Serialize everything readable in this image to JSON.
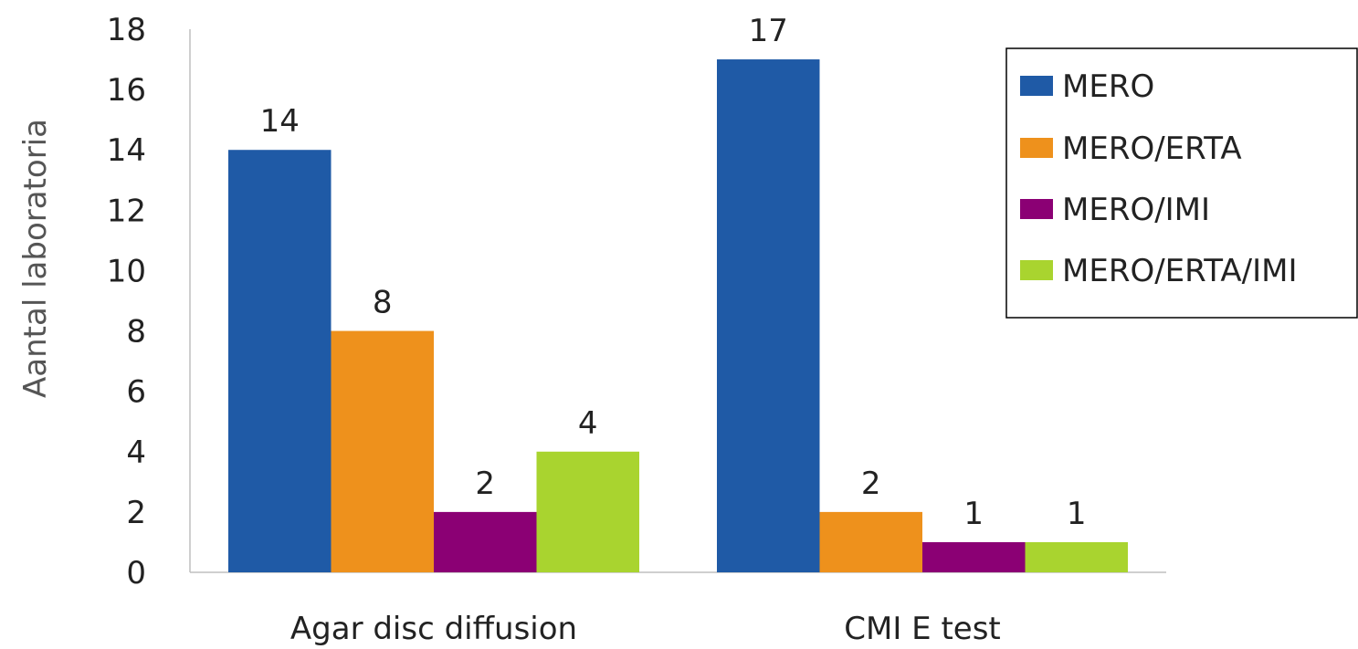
{
  "chart_data": {
    "type": "bar",
    "categories": [
      "Agar disc diffusion",
      "CMI E test"
    ],
    "series": [
      {
        "name": "MERO",
        "values": [
          14,
          17
        ],
        "color": "#1f5aa6"
      },
      {
        "name": "MERO/ERTA",
        "values": [
          8,
          2
        ],
        "color": "#ee911c"
      },
      {
        "name": "MERO/IMI",
        "values": [
          2,
          1
        ],
        "color": "#8b0074"
      },
      {
        "name": "MERO/ERTA/IMI",
        "values": [
          4,
          1
        ],
        "color": "#a9d42f"
      }
    ],
    "ylabel": "Aantal laboratoria",
    "xlabel": "",
    "ylim": [
      0,
      18
    ],
    "yticks": [
      0,
      2,
      4,
      6,
      8,
      10,
      12,
      14,
      16,
      18
    ],
    "legend": "top-right",
    "grid": false,
    "data_labels": true
  }
}
